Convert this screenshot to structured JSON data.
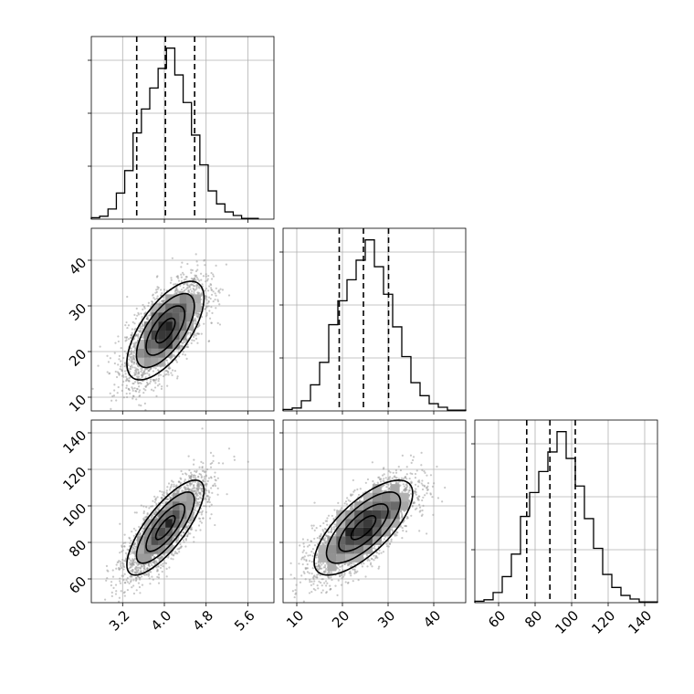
{
  "chart_data": {
    "type": "corner",
    "title": "",
    "parameters": [
      {
        "name": "",
        "range": [
          2.6,
          6.1
        ],
        "ticks": [
          3.2,
          4.0,
          4.8,
          5.6
        ],
        "tick_labels": [
          "3.2",
          "4.0",
          "4.8",
          "5.6"
        ],
        "quantiles": [
          3.47,
          4.02,
          4.58
        ],
        "hist_bins": [
          2.6,
          2.76,
          2.92,
          3.08,
          3.24,
          3.4,
          3.56,
          3.72,
          3.88,
          4.04,
          4.2,
          4.36,
          4.52,
          4.68,
          4.84,
          5.0,
          5.16,
          5.32,
          5.48,
          5.64,
          5.8
        ],
        "hist_counts": [
          2,
          4,
          14,
          36,
          67,
          119,
          152,
          181,
          208,
          236,
          199,
          161,
          116,
          75,
          39,
          21,
          10,
          5,
          1,
          1
        ]
      },
      {
        "name": "",
        "range": [
          7,
          47
        ],
        "ticks": [
          10,
          20,
          30,
          40
        ],
        "tick_labels": [
          "10",
          "20",
          "30",
          "40"
        ],
        "quantiles": [
          19.3,
          24.6,
          30.1
        ],
        "hist_bins": [
          7,
          9,
          11,
          13,
          15,
          17,
          19,
          21,
          23,
          25,
          27,
          29,
          31,
          33,
          35,
          37,
          39,
          41,
          43,
          45,
          47
        ],
        "hist_counts": [
          2,
          4,
          14,
          36,
          67,
          119,
          152,
          181,
          208,
          236,
          199,
          161,
          116,
          75,
          39,
          21,
          10,
          5,
          1,
          1
        ]
      },
      {
        "name": "",
        "range": [
          47,
          147
        ],
        "ticks": [
          60,
          80,
          100,
          120,
          140
        ],
        "tick_labels": [
          "60",
          "80",
          "100",
          "120",
          "140"
        ],
        "quantiles": [
          75.4,
          88.1,
          102.0
        ],
        "hist_bins": [
          47,
          52,
          57,
          62,
          67,
          72,
          77,
          82,
          87,
          92,
          97,
          102,
          107,
          112,
          117,
          122,
          127,
          132,
          137,
          142,
          147
        ],
        "hist_counts": [
          2,
          4,
          14,
          36,
          67,
          119,
          152,
          181,
          208,
          236,
          199,
          161,
          116,
          75,
          39,
          21,
          10,
          5,
          1,
          1
        ]
      }
    ],
    "hist_ylim": [
      0,
      252
    ],
    "joint": [
      {
        "x_param": 0,
        "y_param": 1,
        "mean": [
          4.02,
          24.6
        ],
        "sd": [
          0.37,
          5.4
        ],
        "rho": 0.66,
        "contour_levels_sigma": [
          0.5,
          1.0,
          1.5,
          2.0
        ],
        "n_samples": 3000
      },
      {
        "x_param": 0,
        "y_param": 2,
        "mean": [
          4.02,
          88.1
        ],
        "sd": [
          0.37,
          13.0
        ],
        "rho": 0.78,
        "contour_levels_sigma": [
          0.5,
          1.0,
          1.5,
          2.0
        ],
        "n_samples": 3000
      },
      {
        "x_param": 1,
        "y_param": 2,
        "mean": [
          24.6,
          88.1
        ],
        "sd": [
          5.4,
          13.0
        ],
        "rho": 0.72,
        "contour_levels_sigma": [
          0.5,
          1.0,
          1.5,
          2.0
        ],
        "n_samples": 3000
      }
    ],
    "grid": true,
    "legend": "none"
  }
}
